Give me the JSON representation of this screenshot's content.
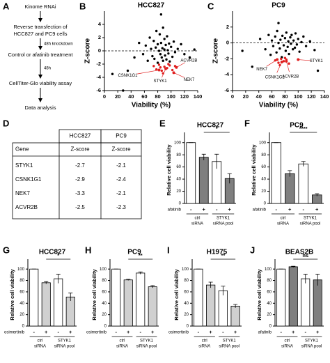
{
  "flowchart": {
    "panel": "A",
    "steps": [
      [
        "Kinome RNAi"
      ],
      [
        "Reverse transfection of",
        "HCC827 and PC9 cells"
      ],
      [
        "Control or afatinib treatment"
      ],
      [
        "CellTiter-Glo viability assay"
      ],
      [
        "Data analysis"
      ]
    ],
    "notes": [
      "48h knockdown",
      "48h"
    ]
  },
  "table": {
    "panel": "D",
    "columns": [
      "HCC827",
      "PC9"
    ],
    "subheader": [
      "Gene",
      "Z-score",
      "Z-score"
    ],
    "rows": [
      [
        "STYK1",
        -2.7,
        -2.1
      ],
      [
        "CSNK1G1",
        -2.9,
        -2.4
      ],
      [
        "NEK7",
        -3.3,
        -2.1
      ],
      [
        "ACVR2B",
        -2.5,
        -2.3
      ]
    ]
  },
  "chart_data": [
    {
      "type": "scatter",
      "panel": "B",
      "title": "HCC827",
      "xlabel": "Viability (%)",
      "ylabel": "Z-score",
      "xlim": [
        0,
        140
      ],
      "xticks": [
        0,
        20,
        40,
        60,
        80,
        100,
        120,
        140
      ],
      "ylim": [
        -6,
        6
      ],
      "yticks": [
        -6,
        -4,
        -2,
        0,
        2,
        4
      ],
      "reference_line": 0,
      "series": [
        {
          "color": "#000000",
          "x": [
            12,
            28,
            35,
            45,
            52,
            58,
            62,
            65,
            68,
            70,
            72,
            74,
            75,
            77,
            78,
            80,
            80,
            82,
            83,
            84,
            85,
            85,
            86,
            87,
            88,
            88,
            90,
            90,
            91,
            92,
            93,
            94,
            95,
            96,
            97,
            98,
            100,
            102,
            104,
            106,
            110,
            115,
            120,
            128,
            135
          ],
          "y": [
            -3.5,
            -6,
            -3,
            -1,
            1.2,
            -0.5,
            0.8,
            -1.5,
            2,
            0.3,
            -0.8,
            1.5,
            -1.2,
            0.5,
            3,
            1,
            -1.8,
            0,
            2.5,
            -0.5,
            5.5,
            1.2,
            -1,
            0.4,
            3.5,
            -1.5,
            0.2,
            1.8,
            -0.7,
            0.9,
            -1.3,
            2.2,
            0.1,
            -0.4,
            1.1,
            -1.6,
            0.6,
            -0.9,
            1.4,
            -0.2,
            0.3,
            1,
            -0.5,
            -1,
            0.2
          ]
        },
        {
          "color": "#e02020",
          "x": [
            74,
            78,
            82,
            86,
            90,
            94,
            98,
            102,
            106,
            88,
            96,
            84
          ],
          "y": [
            -2.3,
            -2.8,
            -2.1,
            -3.0,
            -2.4,
            -2.6,
            -2.2,
            -2.9,
            -2.3,
            -3.4,
            -2.0,
            -2.5
          ]
        }
      ],
      "labeled_points": {
        "color": "#e02020",
        "labels": [
          "ACVR2B",
          "NEK7",
          "CSNK1G1",
          "STYK1"
        ],
        "x": [
          108,
          104,
          82,
          92
        ],
        "y": [
          -2.5,
          -3.3,
          -2.9,
          -2.7
        ]
      }
    },
    {
      "type": "scatter",
      "panel": "C",
      "title": "PC9",
      "xlabel": "Viability (%)",
      "ylabel": "Z-score",
      "xlim": [
        0,
        140
      ],
      "xticks": [
        0,
        20,
        40,
        60,
        80,
        100,
        120,
        140
      ],
      "ylim": [
        -6,
        4
      ],
      "yticks": [
        -6,
        -4,
        -2,
        0,
        2
      ],
      "reference_line": 0,
      "series": [
        {
          "color": "#000000",
          "x": [
            15,
            30,
            42,
            50,
            55,
            58,
            60,
            62,
            65,
            67,
            68,
            70,
            72,
            73,
            75,
            76,
            78,
            80,
            81,
            82,
            84,
            85,
            86,
            88,
            89,
            90,
            92,
            93,
            95,
            96,
            98,
            100,
            102,
            105,
            108,
            112,
            118,
            125,
            130,
            70
          ],
          "y": [
            -1,
            -3,
            0.5,
            -0.8,
            1,
            -1.5,
            0.3,
            -0.4,
            0.8,
            -1.2,
            1.5,
            0,
            -0.7,
            0.4,
            -1.8,
            0.9,
            -0.3,
            0.6,
            -1,
            1.3,
            -0.5,
            0.2,
            -1.4,
            0.7,
            -0.1,
            1,
            -0.8,
            0.3,
            -0.6,
            1.2,
            -0.2,
            0.5,
            -1.1,
            0.1,
            0.8,
            -0.4,
            0.2,
            -0.9,
            -3.5,
            2.5
          ]
        },
        {
          "color": "#e02020",
          "x": [
            65,
            70,
            74,
            78,
            82,
            86,
            72,
            80
          ],
          "y": [
            -2.2,
            -2.5,
            -2.0,
            -2.3,
            -2.1,
            -2.6,
            -2.8,
            -1.9
          ]
        }
      ],
      "labeled_points": {
        "color": "#e02020",
        "labels": [
          "STYK1",
          "NEK7",
          "CSNK1G1",
          "ACVR2B"
        ],
        "x": [
          100,
          68,
          75,
          82
        ],
        "y": [
          -2.1,
          -2.1,
          -2.4,
          -2.3
        ]
      }
    },
    {
      "type": "bar",
      "panel": "E",
      "title": "HCC827",
      "ylabel": "Relative cell viability",
      "treatment": "afatinib",
      "categories": [
        "-",
        "+",
        "-",
        "+"
      ],
      "groups": [
        [
          "ctrl",
          "siRNA"
        ],
        [
          "STYK1",
          "siRNA pool"
        ]
      ],
      "values": [
        100,
        76,
        69,
        41
      ],
      "errors": [
        0,
        5,
        12,
        8
      ],
      "colors": [
        "#ffffff",
        "#7f7f7f",
        "#ffffff",
        "#7f7f7f"
      ],
      "ylim": [
        0,
        110
      ],
      "yticks": [
        0,
        20,
        40,
        60,
        80,
        100
      ],
      "significance": "*"
    },
    {
      "type": "bar",
      "panel": "F",
      "title": "PC9",
      "ylabel": "Relative cell viability",
      "treatment": "afatinib",
      "categories": [
        "-",
        "+",
        "-",
        "+"
      ],
      "groups": [
        [
          "ctrl",
          "siRNA"
        ],
        [
          "STYK1",
          "siRNA pool"
        ]
      ],
      "values": [
        100,
        49,
        65,
        14
      ],
      "errors": [
        0,
        5,
        4,
        2
      ],
      "colors": [
        "#ffffff",
        "#7f7f7f",
        "#ffffff",
        "#7f7f7f"
      ],
      "ylim": [
        0,
        110
      ],
      "yticks": [
        0,
        20,
        40,
        60,
        80,
        100
      ],
      "significance": "****"
    },
    {
      "type": "bar",
      "panel": "G",
      "title": "HCC827",
      "ylabel": "Relative cell viability",
      "treatment": "osimertinib",
      "categories": [
        "-",
        "+",
        "-",
        "+"
      ],
      "groups": [
        [
          "ctrl",
          "siRNA"
        ],
        [
          "STYK1",
          "siRNA pool"
        ]
      ],
      "values": [
        100,
        76,
        83,
        51
      ],
      "errors": [
        0,
        2,
        8,
        7
      ],
      "colors": [
        "#ffffff",
        "#d0d0d0",
        "#ffffff",
        "#d0d0d0"
      ],
      "ylim": [
        0,
        110
      ],
      "yticks": [
        0,
        20,
        40,
        60,
        80,
        100
      ],
      "significance": "*"
    },
    {
      "type": "bar",
      "panel": "H",
      "title": "PC9",
      "ylabel": "Relative cell viability",
      "treatment": "osimertinib",
      "categories": [
        "-",
        "+",
        "-",
        "+"
      ],
      "groups": [
        [
          "ctrl",
          "siRNA"
        ],
        [
          "STYK1",
          "siRNA pool"
        ]
      ],
      "values": [
        100,
        81,
        93,
        69
      ],
      "errors": [
        0,
        1,
        2,
        2
      ],
      "colors": [
        "#ffffff",
        "#d0d0d0",
        "#ffffff",
        "#d0d0d0"
      ],
      "ylim": [
        0,
        110
      ],
      "yticks": [
        0,
        20,
        40,
        60,
        80,
        100
      ],
      "significance": "**"
    },
    {
      "type": "bar",
      "panel": "I",
      "title": "H1975",
      "ylabel": "Relative cell viability",
      "treatment": "osimertinib",
      "categories": [
        "-",
        "+",
        "-",
        "+"
      ],
      "groups": [
        [
          "ctrl",
          "siRNA"
        ],
        [
          "STYK1",
          "siRNA pool"
        ]
      ],
      "values": [
        100,
        72,
        62,
        35
      ],
      "errors": [
        0,
        5,
        8,
        3
      ],
      "colors": [
        "#ffffff",
        "#d0d0d0",
        "#ffffff",
        "#d0d0d0"
      ],
      "ylim": [
        0,
        110
      ],
      "yticks": [
        0,
        20,
        40,
        60,
        80,
        100
      ],
      "significance": "**"
    },
    {
      "type": "bar",
      "panel": "J",
      "title": "BEAS2B",
      "ylabel": "Relative cell viability",
      "treatment": "afatinib",
      "categories": [
        "-",
        "+",
        "-",
        "+"
      ],
      "groups": [
        [
          "ctrl",
          "siRNA"
        ],
        [
          "STYK1",
          "siRNA pool"
        ]
      ],
      "values": [
        100,
        104,
        83,
        81
      ],
      "errors": [
        0,
        1,
        8,
        10
      ],
      "colors": [
        "#ffffff",
        "#7f7f7f",
        "#ffffff",
        "#7f7f7f"
      ],
      "ylim": [
        0,
        110
      ],
      "yticks": [
        0,
        20,
        40,
        60,
        80,
        100
      ],
      "significance": "ns"
    }
  ]
}
